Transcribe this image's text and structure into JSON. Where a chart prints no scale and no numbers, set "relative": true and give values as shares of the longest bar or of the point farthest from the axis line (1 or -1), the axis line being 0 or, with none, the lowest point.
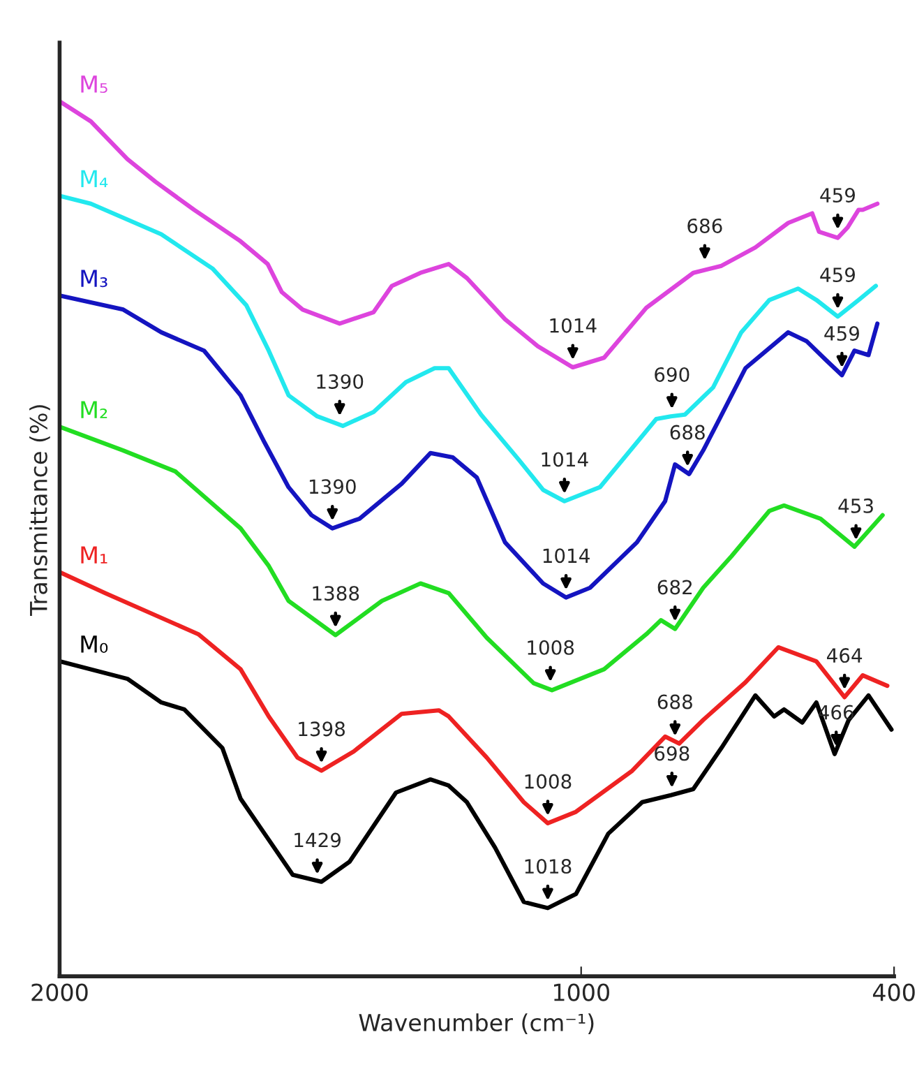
{
  "chart_data": {
    "type": "line",
    "relative": true,
    "xlabel": "Wavenumber (cm⁻¹)",
    "ylabel": "Transmittance (%)",
    "xlim": [
      2000,
      400
    ],
    "xticks": [
      2000,
      1000,
      400
    ],
    "grid": false,
    "legend": false,
    "series": [
      {
        "name": "M₅",
        "color": "#dd44dd",
        "x": [
          2000,
          1940,
          1870,
          1816,
          1742,
          1653,
          1601,
          1574,
          1534,
          1463,
          1398,
          1363,
          1308,
          1254,
          1219,
          1146,
          1083,
          1016,
          956,
          875,
          785,
          731,
          666,
          603,
          557,
          544,
          508,
          489,
          468,
          460,
          432
        ],
        "values": [
          1.0,
          0.977,
          0.934,
          0.908,
          0.876,
          0.84,
          0.814,
          0.782,
          0.762,
          0.746,
          0.759,
          0.789,
          0.804,
          0.814,
          0.798,
          0.751,
          0.72,
          0.696,
          0.707,
          0.764,
          0.804,
          0.812,
          0.833,
          0.861,
          0.872,
          0.851,
          0.844,
          0.856,
          0.876,
          0.876,
          0.883
        ]
      },
      {
        "name": "M₄",
        "color": "#22e8ee",
        "x": [
          2000,
          1940,
          1805,
          1707,
          1642,
          1599,
          1561,
          1506,
          1457,
          1398,
          1336,
          1281,
          1254,
          1192,
          1119,
          1073,
          1032,
          964,
          856,
          828,
          801,
          747,
          693,
          639,
          584,
          549,
          508,
          468,
          435
        ],
        "values": [
          0.892,
          0.883,
          0.848,
          0.809,
          0.767,
          0.715,
          0.664,
          0.64,
          0.629,
          0.645,
          0.679,
          0.695,
          0.695,
          0.642,
          0.59,
          0.556,
          0.543,
          0.559,
          0.637,
          0.64,
          0.642,
          0.673,
          0.736,
          0.773,
          0.786,
          0.773,
          0.754,
          0.773,
          0.789
        ]
      },
      {
        "name": "M₃",
        "color": "#1414c0",
        "x": [
          2000,
          1878,
          1805,
          1723,
          1653,
          1607,
          1561,
          1517,
          1477,
          1425,
          1344,
          1289,
          1246,
          1200,
          1146,
          1073,
          1029,
          983,
          893,
          839,
          820,
          793,
          766,
          739,
          685,
          603,
          568,
          530,
          500,
          476,
          449,
          432
        ],
        "values": [
          0.778,
          0.762,
          0.736,
          0.715,
          0.664,
          0.61,
          0.559,
          0.527,
          0.512,
          0.523,
          0.563,
          0.598,
          0.593,
          0.57,
          0.496,
          0.449,
          0.433,
          0.444,
          0.496,
          0.543,
          0.585,
          0.574,
          0.601,
          0.632,
          0.695,
          0.736,
          0.726,
          0.704,
          0.687,
          0.715,
          0.71,
          0.746
        ]
      },
      {
        "name": "M₂",
        "color": "#22dd22",
        "x": [
          2000,
          1878,
          1778,
          1653,
          1599,
          1561,
          1471,
          1382,
          1308,
          1254,
          1181,
          1091,
          1056,
          956,
          875,
          847,
          820,
          766,
          712,
          639,
          611,
          541,
          476,
          422
        ],
        "values": [
          0.628,
          0.601,
          0.577,
          0.512,
          0.469,
          0.429,
          0.39,
          0.429,
          0.449,
          0.438,
          0.387,
          0.335,
          0.327,
          0.351,
          0.391,
          0.407,
          0.397,
          0.444,
          0.48,
          0.532,
          0.538,
          0.523,
          0.491,
          0.527
        ]
      },
      {
        "name": "M₁",
        "color": "#ee2222",
        "x": [
          2000,
          1913,
          1734,
          1653,
          1599,
          1544,
          1498,
          1436,
          1344,
          1273,
          1254,
          1181,
          1110,
          1064,
          1010,
          902,
          839,
          812,
          766,
          685,
          622,
          549,
          495,
          460,
          413
        ],
        "values": [
          0.462,
          0.438,
          0.391,
          0.351,
          0.297,
          0.25,
          0.235,
          0.257,
          0.3,
          0.304,
          0.297,
          0.25,
          0.199,
          0.175,
          0.188,
          0.235,
          0.274,
          0.266,
          0.293,
          0.336,
          0.376,
          0.36,
          0.319,
          0.344,
          0.332
        ]
      },
      {
        "name": "M₀",
        "color": "#000000",
        "x": [
          2000,
          1870,
          1805,
          1761,
          1688,
          1653,
          1607,
          1553,
          1498,
          1444,
          1355,
          1289,
          1254,
          1219,
          1165,
          1110,
          1064,
          1010,
          948,
          883,
          828,
          785,
          731,
          666,
          630,
          611,
          576,
          549,
          514,
          487,
          449,
          405
        ],
        "values": [
          0.36,
          0.34,
          0.313,
          0.305,
          0.261,
          0.203,
          0.163,
          0.116,
          0.108,
          0.131,
          0.21,
          0.225,
          0.218,
          0.199,
          0.147,
          0.085,
          0.078,
          0.094,
          0.163,
          0.199,
          0.207,
          0.214,
          0.261,
          0.321,
          0.297,
          0.305,
          0.29,
          0.313,
          0.254,
          0.293,
          0.321,
          0.282
        ]
      }
    ],
    "annotations": [
      {
        "text": "1429",
        "x": 1506,
        "y": 0.108
      },
      {
        "text": "1018",
        "x": 1064,
        "y": 0.078
      },
      {
        "text": "698",
        "x": 826,
        "y": 0.207
      },
      {
        "text": "466",
        "x": 511,
        "y": 0.254
      },
      {
        "text": "1398",
        "x": 1498,
        "y": 0.235
      },
      {
        "text": "1008",
        "x": 1064,
        "y": 0.175
      },
      {
        "text": "688",
        "x": 820,
        "y": 0.266
      },
      {
        "text": "464",
        "x": 495,
        "y": 0.319
      },
      {
        "text": "1388",
        "x": 1471,
        "y": 0.39
      },
      {
        "text": "1008",
        "x": 1059,
        "y": 0.328
      },
      {
        "text": "682",
        "x": 820,
        "y": 0.397
      },
      {
        "text": "453",
        "x": 473,
        "y": 0.49
      },
      {
        "text": "1390",
        "x": 1477,
        "y": 0.512
      },
      {
        "text": "1014",
        "x": 1029,
        "y": 0.433
      },
      {
        "text": "688",
        "x": 796,
        "y": 0.574
      },
      {
        "text": "459",
        "x": 500,
        "y": 0.687
      },
      {
        "text": "1390",
        "x": 1463,
        "y": 0.632
      },
      {
        "text": "1014",
        "x": 1032,
        "y": 0.543
      },
      {
        "text": "690",
        "x": 826,
        "y": 0.64
      },
      {
        "text": "459",
        "x": 508,
        "y": 0.754
      },
      {
        "text": "686",
        "x": 763,
        "y": 0.81
      },
      {
        "text": "1014",
        "x": 1016,
        "y": 0.696
      },
      {
        "text": "459",
        "x": 508,
        "y": 0.845
      }
    ]
  }
}
